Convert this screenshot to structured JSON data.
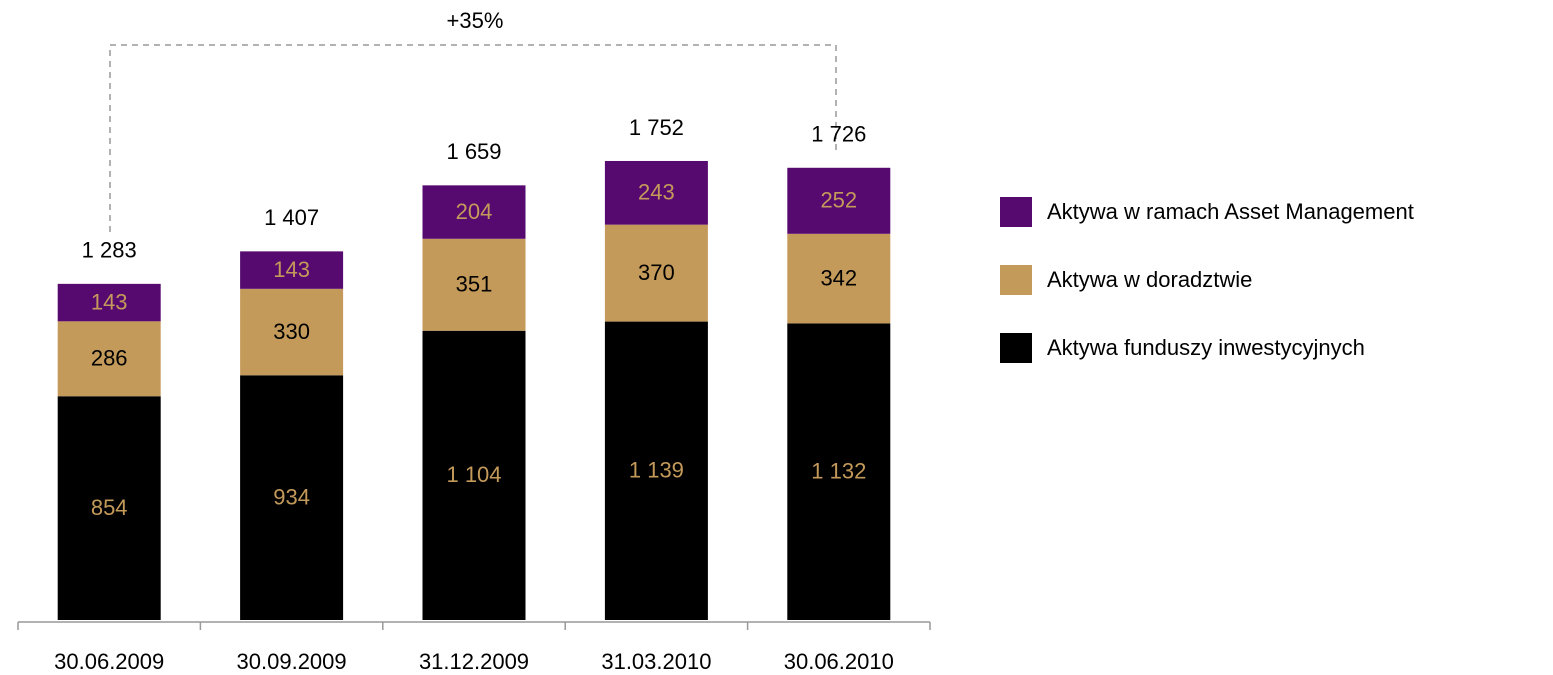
{
  "chart_data": {
    "type": "stacked_bar",
    "annotation": "+35%",
    "categories": [
      "30.06.2009",
      "30.09.2009",
      "31.12.2009",
      "31.03.2010",
      "30.06.2010"
    ],
    "series": [
      {
        "name": "Aktywa funduszy inwestycyjnych",
        "color": "#000000",
        "label_color": "#C49A5A",
        "values": [
          854,
          934,
          1104,
          1139,
          1132
        ],
        "value_labels": [
          "854",
          "934",
          "1 104",
          "1 139",
          "1 132"
        ]
      },
      {
        "name": "Aktywa w doradztwie",
        "color": "#C49A5A",
        "label_color": "#000000",
        "values": [
          286,
          330,
          351,
          370,
          342
        ]
      },
      {
        "name": "Aktywa w ramach Asset Management",
        "color": "#560A70",
        "label_color": "#C49A5A",
        "values": [
          143,
          143,
          204,
          243,
          252
        ]
      }
    ],
    "totals": {
      "values": [
        1283,
        1407,
        1659,
        1752,
        1726
      ],
      "value_labels": [
        "1 283",
        "1 407",
        "1 659",
        "1 752",
        "1 726"
      ]
    }
  }
}
